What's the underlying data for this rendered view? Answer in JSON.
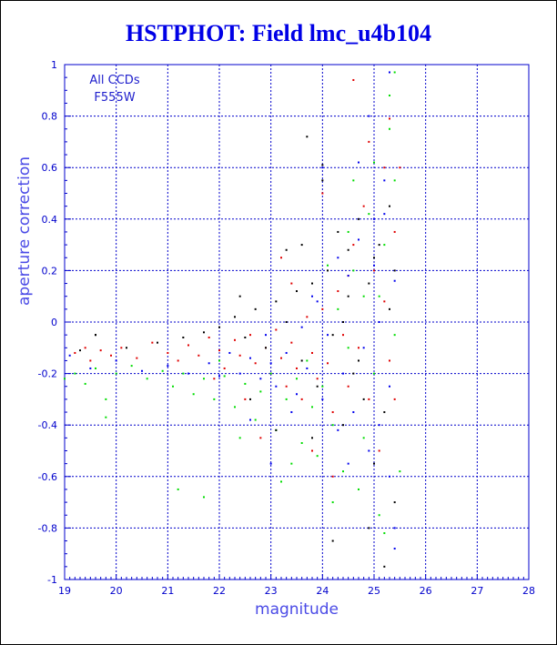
{
  "chart_data": {
    "type": "scatter",
    "title": "HSTPHOT: Field lmc_u4b104",
    "xlabel": "magnitude",
    "ylabel": "aperture correction",
    "xlim": [
      19,
      28
    ],
    "ylim": [
      -1,
      1
    ],
    "xticks": [
      19,
      20,
      21,
      22,
      23,
      24,
      25,
      26,
      27,
      28
    ],
    "yticks": [
      -1,
      -0.8,
      -0.6,
      -0.4,
      -0.2,
      0,
      0.2,
      0.4,
      0.6,
      0.8,
      1
    ],
    "grid": true,
    "annotations": [
      "All CCDs",
      "F555W"
    ],
    "series": [
      {
        "color": "#e00000",
        "points": [
          [
            19.2,
            -0.12
          ],
          [
            19.4,
            -0.1
          ],
          [
            19.5,
            -0.15
          ],
          [
            19.7,
            -0.11
          ],
          [
            19.9,
            -0.13
          ],
          [
            20.1,
            -0.1
          ],
          [
            20.4,
            -0.14
          ],
          [
            20.7,
            -0.08
          ],
          [
            21.0,
            -0.12
          ],
          [
            21.2,
            -0.15
          ],
          [
            21.4,
            -0.09
          ],
          [
            21.6,
            -0.13
          ],
          [
            21.8,
            -0.06
          ],
          [
            22.0,
            -0.11
          ],
          [
            22.1,
            -0.18
          ],
          [
            22.3,
            -0.07
          ],
          [
            22.4,
            -0.13
          ],
          [
            22.6,
            -0.05
          ],
          [
            22.7,
            -0.16
          ],
          [
            22.9,
            -0.1
          ],
          [
            23.0,
            -0.2
          ],
          [
            23.1,
            -0.03
          ],
          [
            23.2,
            -0.14
          ],
          [
            23.3,
            -0.25
          ],
          [
            23.4,
            -0.08
          ],
          [
            23.5,
            -0.18
          ],
          [
            23.6,
            -0.3
          ],
          [
            23.7,
            0.02
          ],
          [
            23.8,
            -0.12
          ],
          [
            23.9,
            -0.22
          ],
          [
            24.0,
            0.05
          ],
          [
            24.1,
            -0.16
          ],
          [
            24.2,
            -0.35
          ],
          [
            24.3,
            0.12
          ],
          [
            24.4,
            -0.05
          ],
          [
            24.5,
            -0.25
          ],
          [
            24.6,
            0.3
          ],
          [
            24.7,
            -0.1
          ],
          [
            24.8,
            0.45
          ],
          [
            24.9,
            -0.3
          ],
          [
            25.0,
            0.2
          ],
          [
            25.1,
            -0.5
          ],
          [
            25.2,
            0.6
          ],
          [
            25.3,
            -0.15
          ],
          [
            25.4,
            0.35
          ],
          [
            25.5,
            0.6
          ],
          [
            24.6,
            0.94
          ],
          [
            25.3,
            0.79
          ],
          [
            24.0,
            0.5
          ],
          [
            23.2,
            0.25
          ],
          [
            22.8,
            -0.45
          ],
          [
            23.8,
            -0.5
          ],
          [
            24.5,
            0.18
          ],
          [
            25.4,
            -0.3
          ],
          [
            24.9,
            0.7
          ],
          [
            22.5,
            -0.3
          ],
          [
            23.4,
            0.15
          ],
          [
            24.2,
            -0.6
          ],
          [
            25.2,
            0.08
          ],
          [
            21.9,
            -0.22
          ]
        ]
      },
      {
        "color": "#00dd00",
        "points": [
          [
            19.0,
            -0.22
          ],
          [
            19.2,
            -0.2
          ],
          [
            19.4,
            -0.24
          ],
          [
            19.6,
            -0.18
          ],
          [
            19.8,
            -0.3
          ],
          [
            20.0,
            -0.2
          ],
          [
            20.3,
            -0.17
          ],
          [
            20.6,
            -0.22
          ],
          [
            20.9,
            -0.19
          ],
          [
            21.1,
            -0.25
          ],
          [
            21.3,
            -0.2
          ],
          [
            21.5,
            -0.28
          ],
          [
            21.7,
            -0.22
          ],
          [
            21.9,
            -0.3
          ],
          [
            22.1,
            -0.21
          ],
          [
            22.3,
            -0.33
          ],
          [
            22.5,
            -0.24
          ],
          [
            22.7,
            -0.38
          ],
          [
            22.8,
            -0.27
          ],
          [
            23.0,
            -0.2
          ],
          [
            23.1,
            -0.42
          ],
          [
            23.3,
            -0.3
          ],
          [
            23.5,
            -0.22
          ],
          [
            23.6,
            -0.47
          ],
          [
            23.8,
            -0.33
          ],
          [
            23.9,
            -0.52
          ],
          [
            24.0,
            -0.25
          ],
          [
            24.2,
            -0.4
          ],
          [
            24.3,
            0.05
          ],
          [
            24.4,
            -0.58
          ],
          [
            24.5,
            -0.1
          ],
          [
            24.6,
            0.2
          ],
          [
            24.7,
            -0.65
          ],
          [
            24.8,
            0.1
          ],
          [
            24.9,
            0.42
          ],
          [
            25.0,
            -0.2
          ],
          [
            25.1,
            -0.75
          ],
          [
            25.2,
            0.3
          ],
          [
            25.3,
            0.75
          ],
          [
            25.4,
            0.55
          ],
          [
            25.5,
            -0.58
          ],
          [
            25.2,
            -0.82
          ],
          [
            24.2,
            -0.7
          ],
          [
            21.2,
            -0.65
          ],
          [
            21.7,
            -0.68
          ],
          [
            23.2,
            -0.62
          ],
          [
            25.3,
            0.88
          ],
          [
            24.6,
            0.55
          ],
          [
            25.4,
            -0.05
          ],
          [
            25.0,
            0.62
          ],
          [
            24.1,
            0.22
          ],
          [
            22.4,
            -0.45
          ],
          [
            19.8,
            -0.37
          ],
          [
            23.7,
            -0.15
          ],
          [
            25.4,
            0.97
          ],
          [
            24.8,
            -0.45
          ],
          [
            22.0,
            -0.15
          ],
          [
            23.4,
            -0.55
          ],
          [
            24.5,
            0.35
          ],
          [
            25.1,
            0.1
          ]
        ]
      },
      {
        "color": "#0000ee",
        "points": [
          [
            19.1,
            -0.13
          ],
          [
            19.5,
            -0.18
          ],
          [
            20.0,
            -0.15
          ],
          [
            20.5,
            -0.19
          ],
          [
            21.0,
            -0.17
          ],
          [
            21.4,
            -0.2
          ],
          [
            21.8,
            -0.16
          ],
          [
            22.0,
            -0.21
          ],
          [
            22.2,
            -0.12
          ],
          [
            22.4,
            -0.2
          ],
          [
            22.6,
            -0.14
          ],
          [
            22.8,
            -0.22
          ],
          [
            23.0,
            -0.16
          ],
          [
            23.1,
            -0.25
          ],
          [
            23.3,
            -0.12
          ],
          [
            23.5,
            -0.28
          ],
          [
            23.6,
            -0.02
          ],
          [
            23.7,
            -0.18
          ],
          [
            23.9,
            0.08
          ],
          [
            24.0,
            -0.3
          ],
          [
            24.1,
            -0.05
          ],
          [
            24.3,
            0.25
          ],
          [
            24.4,
            -0.2
          ],
          [
            24.5,
            0.18
          ],
          [
            24.6,
            -0.35
          ],
          [
            24.7,
            0.32
          ],
          [
            24.8,
            -0.1
          ],
          [
            24.9,
            -0.5
          ],
          [
            25.0,
            0.4
          ],
          [
            25.1,
            0.0
          ],
          [
            25.2,
            0.55
          ],
          [
            25.3,
            -0.25
          ],
          [
            25.4,
            0.16
          ],
          [
            25.3,
            0.97
          ],
          [
            25.2,
            0.42
          ],
          [
            25.4,
            -0.88
          ],
          [
            25.3,
            -0.6
          ],
          [
            24.0,
            0.6
          ],
          [
            23.0,
            -0.55
          ],
          [
            22.6,
            -0.38
          ],
          [
            24.7,
            0.62
          ],
          [
            25.0,
            0.22
          ],
          [
            23.8,
            0.1
          ],
          [
            24.9,
            0.8
          ],
          [
            24.3,
            -0.42
          ],
          [
            25.4,
            -0.8
          ],
          [
            22.9,
            -0.05
          ],
          [
            23.4,
            -0.35
          ],
          [
            25.1,
            -0.4
          ],
          [
            24.5,
            -0.55
          ]
        ]
      },
      {
        "color": "#000000",
        "points": [
          [
            19.3,
            -0.11
          ],
          [
            19.6,
            -0.05
          ],
          [
            20.2,
            -0.1
          ],
          [
            20.8,
            -0.08
          ],
          [
            21.3,
            -0.06
          ],
          [
            21.7,
            -0.04
          ],
          [
            22.0,
            -0.02
          ],
          [
            22.3,
            0.02
          ],
          [
            22.5,
            -0.06
          ],
          [
            22.7,
            0.05
          ],
          [
            22.9,
            -0.1
          ],
          [
            23.1,
            0.08
          ],
          [
            23.3,
            0.0
          ],
          [
            23.5,
            0.12
          ],
          [
            23.6,
            -0.15
          ],
          [
            23.8,
            0.15
          ],
          [
            23.9,
            -0.25
          ],
          [
            24.0,
            0.55
          ],
          [
            24.1,
            0.2
          ],
          [
            24.2,
            -0.05
          ],
          [
            24.3,
            0.35
          ],
          [
            24.4,
            -0.4
          ],
          [
            24.5,
            0.28
          ],
          [
            24.6,
            -0.2
          ],
          [
            24.7,
            0.4
          ],
          [
            24.8,
            -0.3
          ],
          [
            24.9,
            0.15
          ],
          [
            25.0,
            -0.55
          ],
          [
            25.1,
            0.3
          ],
          [
            25.2,
            -0.35
          ],
          [
            25.3,
            0.05
          ],
          [
            25.4,
            -0.7
          ],
          [
            23.7,
            0.72
          ],
          [
            24.0,
            0.61
          ],
          [
            24.7,
            -0.15
          ],
          [
            25.2,
            -0.95
          ],
          [
            24.2,
            -0.85
          ],
          [
            23.1,
            -0.42
          ],
          [
            22.4,
            0.1
          ],
          [
            23.3,
            0.28
          ],
          [
            24.5,
            0.1
          ],
          [
            25.0,
            0.25
          ],
          [
            22.6,
            -0.3
          ],
          [
            23.8,
            -0.45
          ],
          [
            25.3,
            0.45
          ],
          [
            19.6,
            -0.05
          ],
          [
            24.4,
            0.0
          ],
          [
            23.6,
            0.3
          ],
          [
            25.4,
            0.2
          ],
          [
            24.9,
            -0.8
          ]
        ]
      }
    ]
  }
}
